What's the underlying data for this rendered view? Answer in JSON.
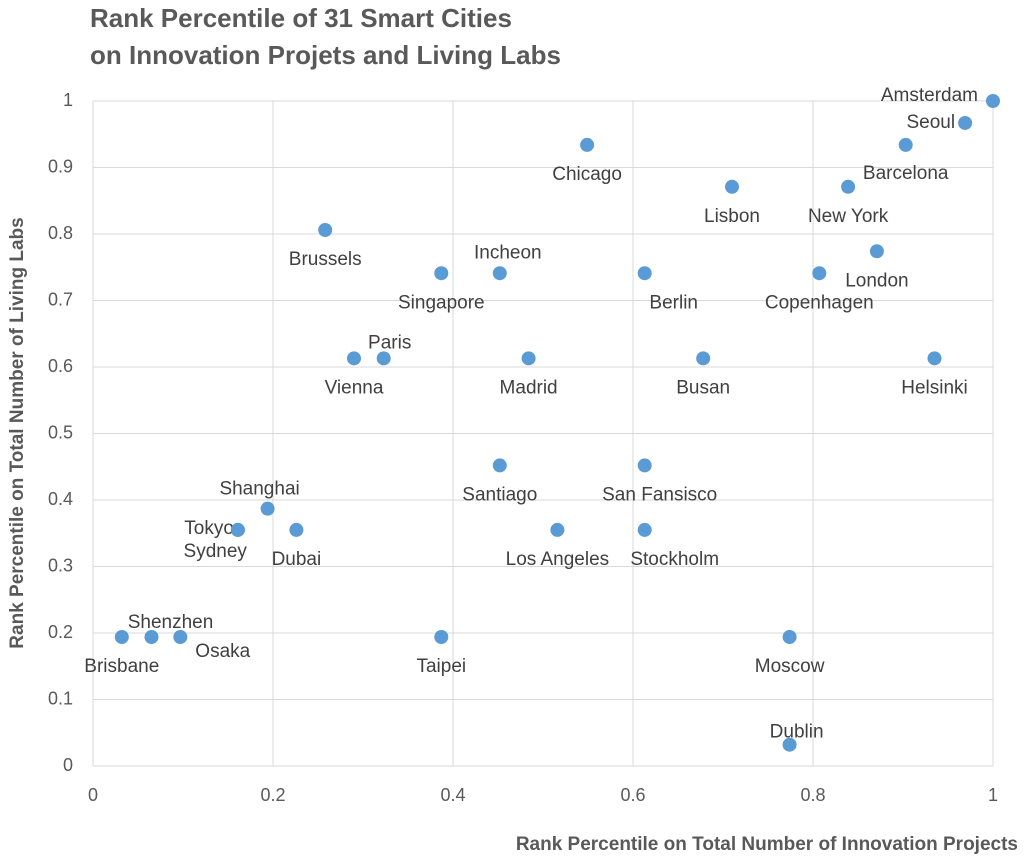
{
  "chart_data": {
    "type": "scatter",
    "title": [
      "Rank Percentile of 31 Smart Cities",
      "on Innovation Projets and Living Labs"
    ],
    "x_label": "Rank Percentile on Total Number of Innovation Projects",
    "y_label": "Rank Percentile on Total Number of Living Labs",
    "color": "#5b9bd5",
    "grid": true,
    "labels": [
      "Amsterdam",
      "Seoul",
      "Barcelona",
      "New York",
      "London",
      "Copenhagen",
      "Helsinki",
      "Chicago",
      "Lisbon",
      "Berlin",
      "Busan",
      "Brussels",
      "Singapore",
      "Incheon",
      "Paris",
      "Vienna",
      "Madrid",
      "Santiago",
      "San Fansisco",
      "Los Angeles",
      "Stockholm",
      "Shanghai",
      "Tokyo",
      "Sydney",
      "Dubai",
      "Shenzhen",
      "Brisbane",
      "Osaka",
      "Taipei",
      "Moscow",
      "Dublin"
    ],
    "x": [
      1,
      0.969,
      0.903,
      0.839,
      0.871,
      0.807,
      0.935,
      0.549,
      0.71,
      0.613,
      0.678,
      0.258,
      0.387,
      0.452,
      0.323,
      0.29,
      0.484,
      0.452,
      0.613,
      0.516,
      0.613,
      0.194,
      0.161,
      0.161,
      0.226,
      0.065,
      0.032,
      0.097,
      0.387,
      0.774,
      0.774
    ],
    "values": [
      1,
      0.967,
      0.934,
      0.871,
      0.774,
      0.741,
      0.613,
      0.934,
      0.871,
      0.741,
      0.613,
      0.806,
      0.741,
      0.741,
      0.613,
      0.613,
      0.613,
      0.452,
      0.452,
      0.355,
      0.355,
      0.387,
      0.355,
      0.355,
      0.355,
      0.194,
      0.194,
      0.194,
      0.194,
      0.194,
      0.032
    ],
    "xlim": [
      0,
      1
    ],
    "ylim": [
      0,
      1
    ],
    "xticks": [
      0,
      0.2,
      0.4,
      0.6,
      0.8,
      1
    ],
    "yticks": [
      0,
      0.1,
      0.2,
      0.3,
      0.4,
      0.5,
      0.6,
      0.7,
      0.8,
      0.9,
      1
    ]
  }
}
